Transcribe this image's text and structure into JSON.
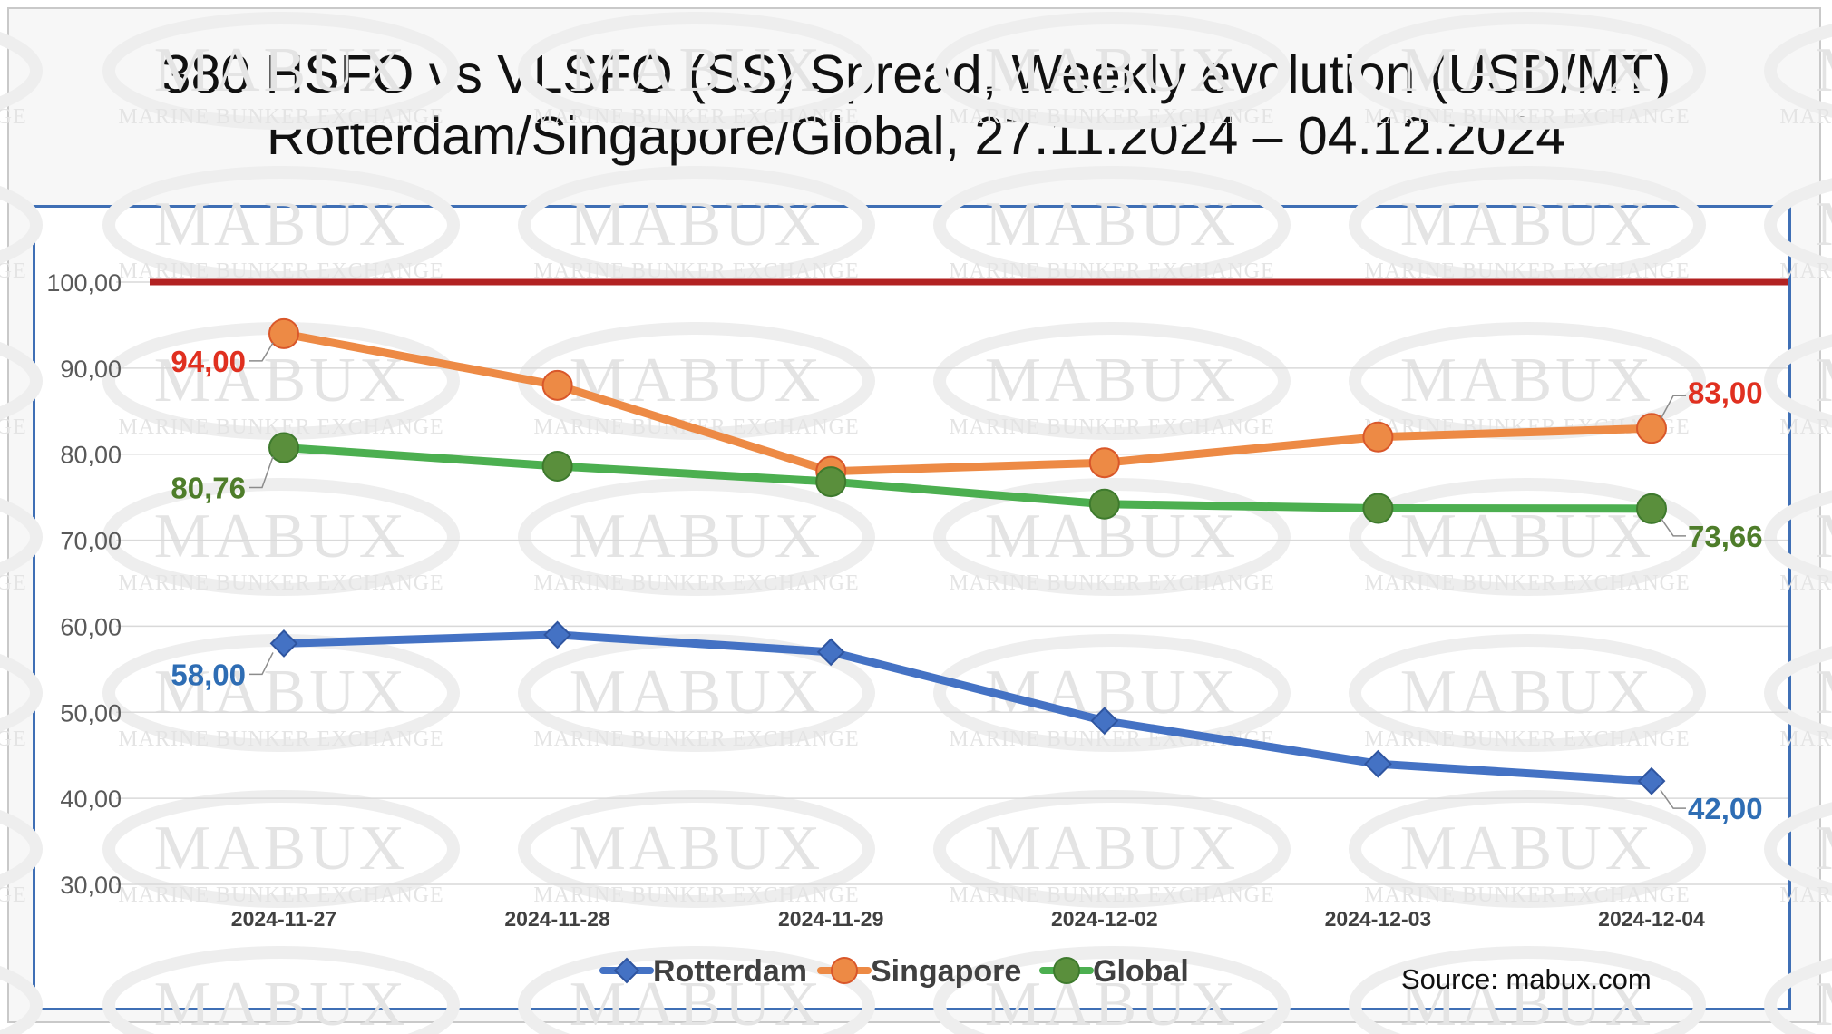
{
  "chart_data": {
    "type": "line",
    "title": [
      "380 HSFO vs VLSFO (SS) Spread, Weekly evolution (USD/MT)",
      "Rotterdam/Singapore/Global, 27.11.2024 – 04.12.2024"
    ],
    "categories": [
      "2024-11-27",
      "2024-11-28",
      "2024-11-29",
      "2024-12-02",
      "2024-12-03",
      "2024-12-04"
    ],
    "y_ticks": [
      "30,00",
      "40,00",
      "50,00",
      "60,00",
      "70,00",
      "80,00",
      "90,00",
      "100,00"
    ],
    "ylim": [
      30,
      100
    ],
    "reference_line": {
      "value": 100,
      "color": "#b22222"
    },
    "series": [
      {
        "name": "Rotterdam",
        "marker": "diamond",
        "color": "#4472c4",
        "label_color": "#2e6db4",
        "values": [
          58,
          59,
          57,
          49,
          44,
          42
        ],
        "first_label": "58,00",
        "last_label": "42,00"
      },
      {
        "name": "Singapore",
        "marker": "circle",
        "color": "#ed8a45",
        "label_color": "#e03020",
        "values": [
          94,
          88,
          78,
          79,
          82,
          83
        ],
        "first_label": "94,00",
        "last_label": "83,00"
      },
      {
        "name": "Global",
        "marker": "circle",
        "color": "#4caf50",
        "marker_color": "#5a8f3c",
        "label_color": "#4e7d2a",
        "values": [
          80.76,
          78.6,
          76.8,
          74.2,
          73.7,
          73.66
        ],
        "first_label": "80,76",
        "last_label": "73,66"
      }
    ],
    "legend_position": "bottom-center",
    "grid": true
  },
  "watermark": {
    "brand": "MABUX",
    "tagline": "MARINE BUNKER EXCHANGE"
  },
  "source": "Source: mabux.com"
}
